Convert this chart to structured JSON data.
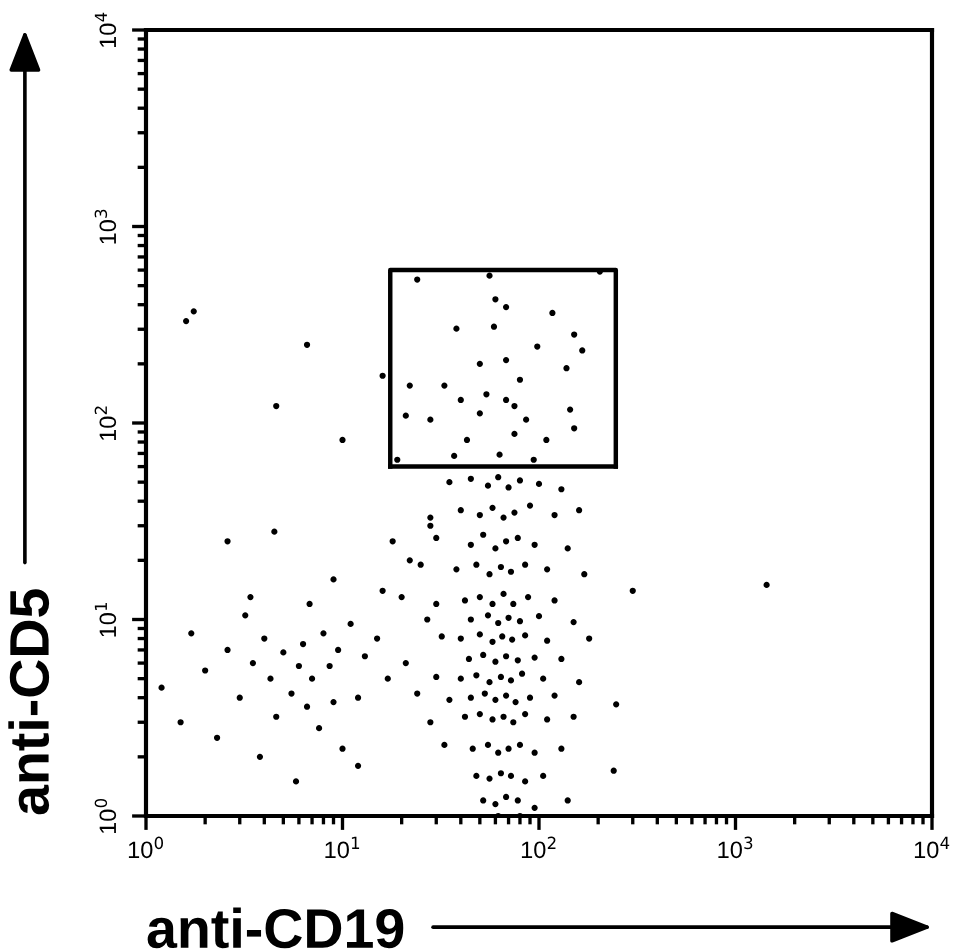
{
  "chart_data": {
    "type": "scatter",
    "xlabel": "anti-CD19",
    "ylabel": "anti-CD5",
    "log": "xy",
    "xlim": [
      1,
      10000
    ],
    "ylim": [
      1,
      10000
    ],
    "xticks": [
      {
        "value": 1,
        "label": "10$^{0}$"
      },
      {
        "value": 10,
        "label": "10$^{1}$"
      },
      {
        "value": 100,
        "label": "10$^{2}$"
      },
      {
        "value": 1000,
        "label": "10$^{3}$"
      },
      {
        "value": 10000,
        "label": "10$^{4}$"
      }
    ],
    "yticks": [
      {
        "value": 1,
        "label": "10$^{0}$"
      },
      {
        "value": 10,
        "label": "10$^{1}$"
      },
      {
        "value": 100,
        "label": "10$^{2}$"
      },
      {
        "value": 1000,
        "label": "10$^{3}$"
      },
      {
        "value": 10000,
        "label": "10$^{4}$"
      }
    ],
    "series": [
      {
        "color": "#000000",
        "marker": "circle",
        "x": [
          1.6,
          1.75,
          6.6,
          4.6,
          10,
          1440,
          247,
          240,
          16,
          24,
          56,
          204,
          60,
          68,
          117,
          151,
          166,
          38,
          59,
          98,
          138,
          22,
          33,
          21,
          28,
          144,
          151,
          40,
          50,
          68,
          80,
          68,
          50,
          86,
          43,
          109,
          63,
          37,
          94,
          19,
          75,
          54,
          75,
          45,
          55,
          62,
          70,
          80,
          100,
          130,
          35,
          40,
          50,
          58,
          66,
          75,
          90,
          120,
          160,
          28,
          30,
          45,
          52,
          60,
          68,
          78,
          95,
          140,
          18,
          38,
          48,
          56,
          64,
          72,
          85,
          110,
          170,
          25,
          42,
          50,
          58,
          66,
          74,
          88,
          120,
          30,
          20,
          300,
          45,
          55,
          62,
          70,
          80,
          100,
          150,
          27,
          40,
          50,
          58,
          65,
          73,
          85,
          110,
          180,
          32,
          44,
          52,
          60,
          68,
          78,
          95,
          130,
          40,
          48,
          56,
          64,
          72,
          82,
          105,
          160,
          30,
          45,
          53,
          60,
          68,
          76,
          90,
          120,
          35,
          42,
          50,
          58,
          66,
          74,
          85,
          110,
          150,
          28,
          46,
          55,
          62,
          70,
          80,
          95,
          130,
          33,
          48,
          56,
          64,
          72,
          85,
          105,
          52,
          60,
          68,
          78,
          95,
          140,
          62,
          80,
          1.5,
          1.7,
          2,
          2.3,
          2.6,
          3,
          3.2,
          3.5,
          3.8,
          4,
          4.3,
          4.6,
          5,
          5.5,
          5.8,
          6,
          6.3,
          6.6,
          7,
          7.6,
          8,
          8.6,
          9,
          9.5,
          10,
          11,
          12,
          13,
          15,
          17,
          21,
          24,
          12,
          6.8,
          3.4,
          9,
          16,
          22,
          28,
          4.5,
          2.6,
          1.2
        ],
        "values": [
          330,
          370,
          250,
          122,
          82,
          15,
          3.7,
          1.7,
          174,
          537,
          562,
          590,
          426,
          389,
          363,
          282,
          234,
          302,
          309,
          245,
          190,
          155,
          155,
          109,
          104,
          117,
          94,
          131,
          200,
          209,
          166,
          131,
          112,
          104,
          82,
          82,
          69,
          68,
          65,
          65,
          88,
          140,
          122,
          52,
          48,
          53,
          47,
          51,
          49,
          46,
          50,
          36,
          34,
          37,
          33,
          35,
          38,
          34,
          36,
          33,
          26,
          24,
          27,
          23,
          25,
          26,
          24,
          23,
          25,
          18,
          19,
          17,
          18.5,
          17.5,
          19,
          18,
          17,
          19,
          12.5,
          13,
          12,
          13.5,
          12,
          13,
          12.5,
          12,
          13,
          14,
          10,
          10.5,
          9.6,
          10.2,
          9.8,
          10.4,
          9.7,
          10,
          8,
          8.4,
          7.7,
          8.2,
          7.9,
          8.3,
          7.8,
          8,
          8.2,
          6.3,
          6.6,
          6.1,
          6.5,
          6.2,
          6.4,
          6.3,
          5,
          5.2,
          4.8,
          5.1,
          4.9,
          5.3,
          5,
          4.8,
          5.1,
          4,
          4.2,
          3.9,
          4.1,
          3.8,
          4,
          4.1,
          3.9,
          3.2,
          3.3,
          3.1,
          3.2,
          3,
          3.3,
          3.1,
          3.2,
          3,
          2.2,
          2.3,
          2.1,
          2.2,
          2.3,
          2.1,
          2.2,
          2.3,
          1.6,
          1.55,
          1.65,
          1.6,
          1.5,
          1.6,
          1.2,
          1.15,
          1.25,
          1.2,
          1.1,
          1.2,
          1,
          1,
          3,
          8.5,
          5.5,
          2.5,
          7,
          4,
          10.5,
          6,
          2,
          8,
          5,
          3.2,
          6.8,
          4.2,
          1.5,
          5.8,
          7.5,
          3.6,
          5,
          2.8,
          8.5,
          5.8,
          3.8,
          7,
          2.2,
          9.5,
          4,
          6.5,
          8,
          5,
          6,
          4.2,
          1.8,
          12,
          13,
          16,
          14,
          20,
          30,
          28,
          25,
          4.5
        ]
      },
      {
        "type": "line",
        "color": "#000000",
        "marker": "none",
        "line_style": "solid",
        "x": [
          17.5,
          17.5,
          246,
          246
        ],
        "values": [
          60,
          600,
          600,
          60
        ]
      },
      {
        "type": "line",
        "color": "#000000",
        "marker": "none",
        "line_style": "solid",
        "x": [
          17.5,
          246
        ],
        "values": [
          60,
          60
        ]
      }
    ]
  }
}
